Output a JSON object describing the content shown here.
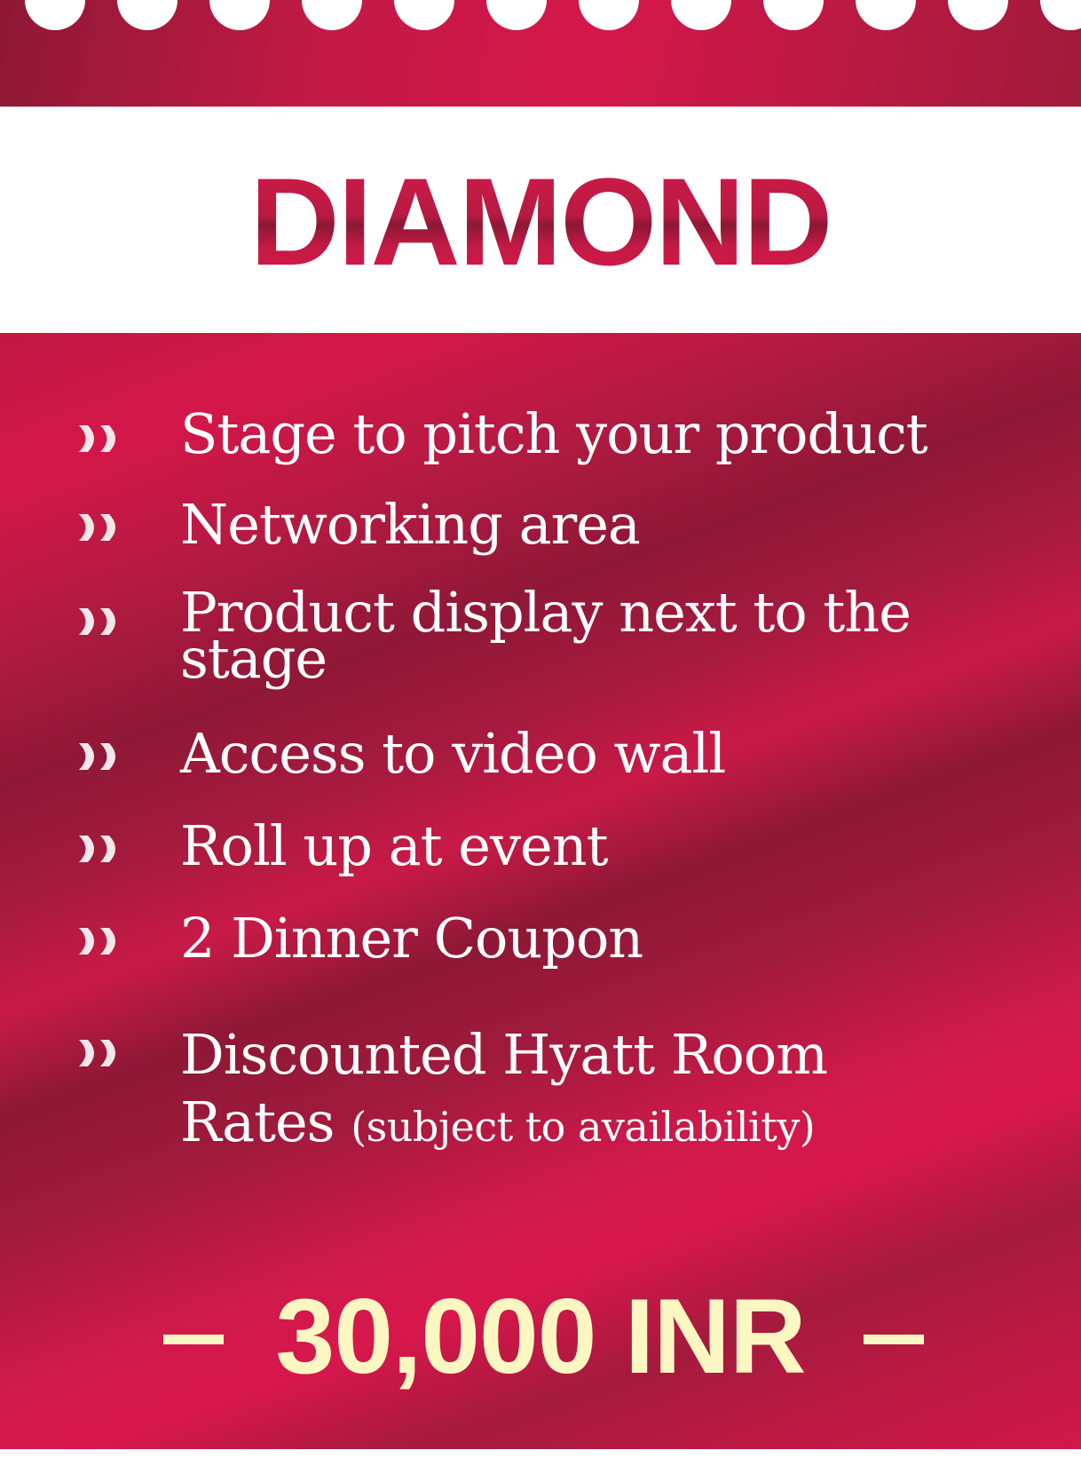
{
  "title": "DIAMOND",
  "features": [
    {
      "text": "Stage to pitch your product"
    },
    {
      "text": "Networking area"
    },
    {
      "line1": "Product display next to the",
      "line2": "stage"
    },
    {
      "text": "Access to video wall"
    },
    {
      "text": "Roll up at event"
    },
    {
      "text": "2 Dinner Coupon"
    },
    {
      "line1": "Discounted Hyatt Room",
      "line2": "Rates",
      "note": "(subject to availability)"
    }
  ],
  "price": "30,000 INR",
  "colors": {
    "primary": "#c8194a",
    "dark": "#8e1836",
    "price_text": "#fcf7c2",
    "text": "#ffffff"
  },
  "icons": {
    "bullet": "double-chevron-right-icon",
    "top_edge": "scalloped-edge"
  }
}
